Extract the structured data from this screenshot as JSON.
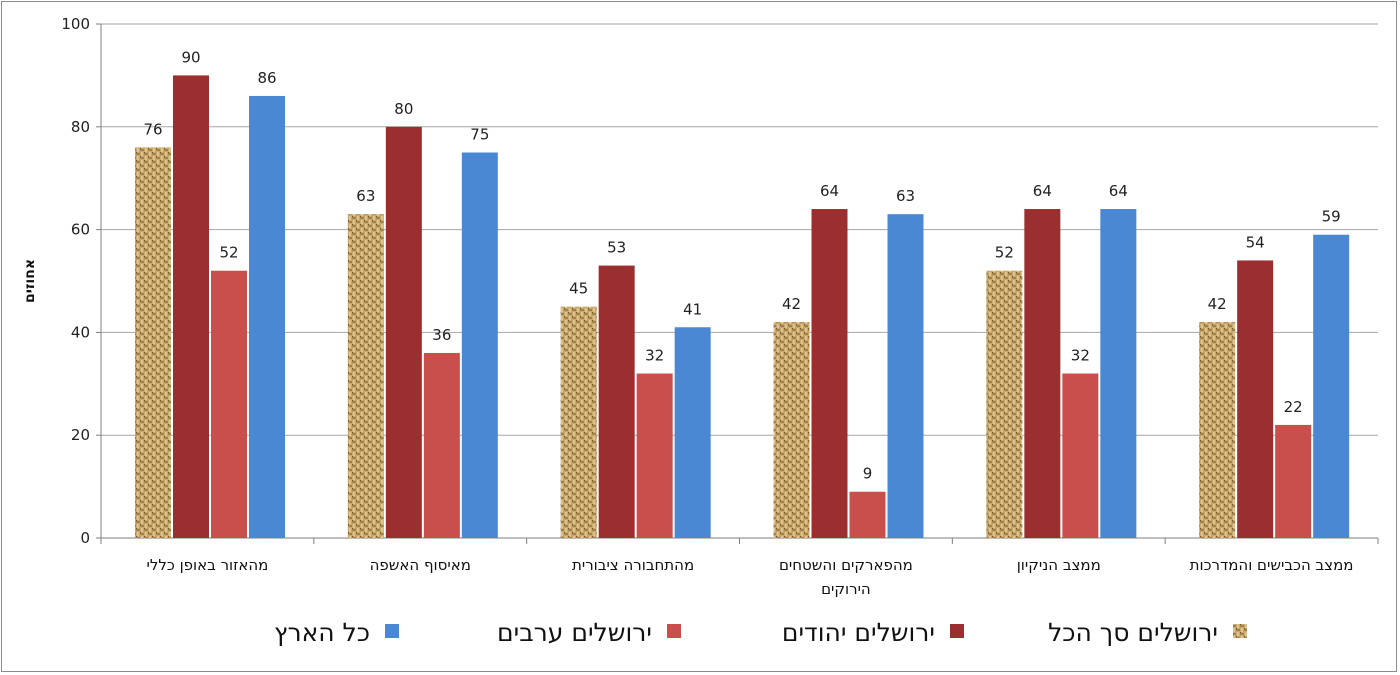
{
  "chart_data": {
    "type": "bar",
    "title": "",
    "xlabel": "",
    "ylabel": "אחוזים",
    "ylim": [
      0,
      100
    ],
    "yticks": [
      0,
      20,
      40,
      60,
      80,
      100
    ],
    "grid": true,
    "legend_position": "bottom",
    "categories": [
      [
        "מהאזור באופן כללי"
      ],
      [
        "מאיסוף האשפה"
      ],
      [
        "מהתחבורה ציבורית"
      ],
      [
        "מהפארקים והשטחים",
        "הירוקים"
      ],
      [
        "ממצב הניקיון"
      ],
      [
        "ממצב הכבישים והמדרכות"
      ]
    ],
    "series": [
      {
        "name": "ירושלים סך הכל",
        "color": "#c9a86a",
        "pattern": "woven",
        "values": [
          76,
          63,
          45,
          42,
          52,
          42
        ]
      },
      {
        "name": "ירושלים יהודים",
        "color": "#9b2f2f",
        "values": [
          90,
          80,
          53,
          64,
          64,
          54
        ]
      },
      {
        "name": "ירושלים ערבים",
        "color": "#c84f4c",
        "values": [
          52,
          36,
          32,
          9,
          32,
          22
        ]
      },
      {
        "name": "כל הארץ",
        "color": "#4a88d4",
        "values": [
          86,
          75,
          41,
          63,
          64,
          59
        ]
      }
    ]
  }
}
